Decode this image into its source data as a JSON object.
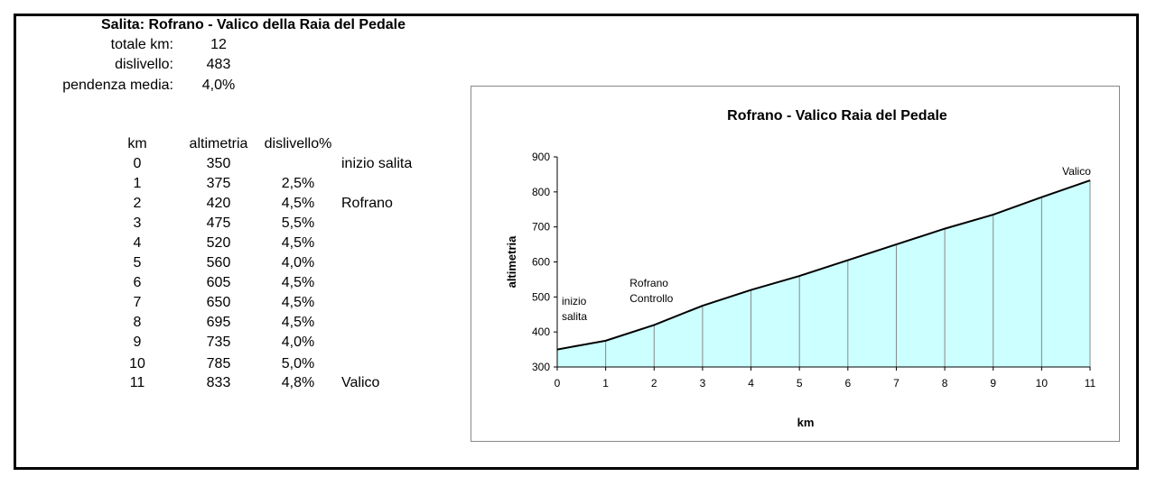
{
  "header": {
    "title": "Salita: Rofrano - Valico della Raia del Pedale",
    "stats": [
      {
        "label": "totale km:",
        "value": "12"
      },
      {
        "label": "dislivello:",
        "value": "483"
      },
      {
        "label": "pendenza media:",
        "value": "4,0%"
      }
    ]
  },
  "table": {
    "columns": [
      "km",
      "altimetria",
      "dislivello%"
    ],
    "rows": [
      {
        "km": "0",
        "alt": "350",
        "pct": "",
        "note": "inizio salita"
      },
      {
        "km": "1",
        "alt": "375",
        "pct": "2,5%",
        "note": ""
      },
      {
        "km": "2",
        "alt": "420",
        "pct": "4,5%",
        "note": "Rofrano"
      },
      {
        "km": "3",
        "alt": "475",
        "pct": "5,5%",
        "note": ""
      },
      {
        "km": "4",
        "alt": "520",
        "pct": "4,5%",
        "note": ""
      },
      {
        "km": "5",
        "alt": "560",
        "pct": "4,0%",
        "note": ""
      },
      {
        "km": "6",
        "alt": "605",
        "pct": "4,5%",
        "note": ""
      },
      {
        "km": "7",
        "alt": "650",
        "pct": "4,5%",
        "note": ""
      },
      {
        "km": "8",
        "alt": "695",
        "pct": "4,5%",
        "note": ""
      },
      {
        "km": "9",
        "alt": "735",
        "pct": "4,0%",
        "note": ""
      },
      {
        "km": "10",
        "alt": "785",
        "pct": "5,0%",
        "note": ""
      },
      {
        "km": "11",
        "alt": "833",
        "pct": "4,8%",
        "note": "Valico"
      }
    ]
  },
  "chart_data": {
    "type": "area",
    "title": "Rofrano - Valico Raia del Pedale",
    "xlabel": "km",
    "ylabel": "altimetria",
    "x": [
      0,
      1,
      2,
      3,
      4,
      5,
      6,
      7,
      8,
      9,
      10,
      11
    ],
    "values": [
      350,
      375,
      420,
      475,
      520,
      560,
      605,
      650,
      695,
      735,
      785,
      833
    ],
    "ylim": [
      300,
      900
    ],
    "yticks": [
      300,
      400,
      500,
      600,
      700,
      800,
      900
    ],
    "xlim": [
      0,
      11
    ],
    "grid": "vertical drop lines",
    "fill_color": "#ccffff",
    "line_color": "#000000",
    "annotations": [
      {
        "x": 0,
        "text": [
          "inizio",
          "salita"
        ]
      },
      {
        "x": 2,
        "text": [
          "Rofrano",
          "Controllo"
        ]
      },
      {
        "x": 11,
        "text": [
          "Valico"
        ]
      }
    ]
  }
}
